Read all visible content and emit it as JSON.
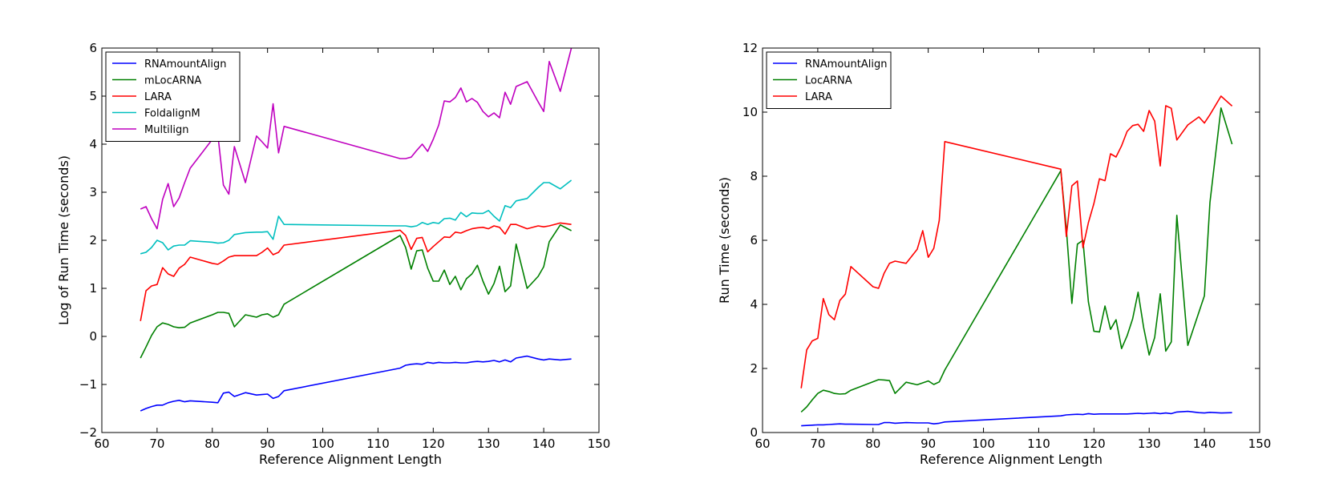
{
  "chart_data": [
    {
      "type": "line",
      "xlabel": "Reference Alignment Length",
      "ylabel": "Log of Run Time (seconds)",
      "xlim": [
        60,
        150
      ],
      "ylim": [
        -2,
        6
      ],
      "xticks": [
        "60",
        "70",
        "80",
        "90",
        "100",
        "110",
        "120",
        "130",
        "140",
        "150"
      ],
      "yticks": [
        "−2",
        "−1",
        "0",
        "1",
        "2",
        "3",
        "4",
        "5",
        "6"
      ],
      "legend_position": "top-left",
      "grid": false,
      "series": [
        {
          "name": "RNAmountAlign",
          "color": "#0000ff",
          "x": [
            67,
            68,
            69,
            70,
            71,
            72,
            73,
            74,
            75,
            76,
            80,
            81,
            82,
            83,
            84,
            86,
            88,
            89,
            90,
            91,
            92,
            93,
            114,
            115,
            116,
            117,
            118,
            119,
            120,
            121,
            122,
            123,
            124,
            125,
            126,
            127,
            128,
            129,
            130,
            131,
            132,
            133,
            134,
            135,
            137,
            139,
            140,
            141,
            143,
            145
          ],
          "y": [
            -1.55,
            -1.5,
            -1.46,
            -1.43,
            -1.43,
            -1.38,
            -1.35,
            -1.33,
            -1.36,
            -1.34,
            -1.37,
            -1.38,
            -1.18,
            -1.16,
            -1.25,
            -1.17,
            -1.22,
            -1.21,
            -1.2,
            -1.29,
            -1.25,
            -1.13,
            -0.66,
            -0.6,
            -0.58,
            -0.57,
            -0.58,
            -0.54,
            -0.56,
            -0.54,
            -0.55,
            -0.55,
            -0.54,
            -0.55,
            -0.55,
            -0.53,
            -0.52,
            -0.53,
            -0.52,
            -0.5,
            -0.53,
            -0.49,
            -0.53,
            -0.45,
            -0.41,
            -0.47,
            -0.49,
            -0.47,
            -0.49,
            -0.47
          ]
        },
        {
          "name": "mLocARNA",
          "color": "#008000",
          "x": [
            67,
            68,
            69,
            70,
            71,
            72,
            73,
            74,
            75,
            76,
            80,
            81,
            82,
            83,
            84,
            86,
            88,
            89,
            90,
            91,
            92,
            93,
            114,
            115,
            116,
            117,
            118,
            119,
            120,
            121,
            122,
            123,
            124,
            125,
            126,
            127,
            128,
            129,
            130,
            131,
            132,
            133,
            134,
            135,
            137,
            139,
            140,
            141,
            143,
            145
          ],
          "y": [
            -0.45,
            -0.22,
            0.02,
            0.2,
            0.28,
            0.25,
            0.2,
            0.18,
            0.19,
            0.28,
            0.45,
            0.5,
            0.5,
            0.48,
            0.2,
            0.45,
            0.4,
            0.45,
            0.47,
            0.4,
            0.45,
            0.67,
            2.1,
            1.85,
            1.4,
            1.78,
            1.8,
            1.42,
            1.15,
            1.15,
            1.38,
            1.08,
            1.25,
            0.97,
            1.2,
            1.3,
            1.48,
            1.15,
            0.88,
            1.1,
            1.46,
            0.93,
            1.05,
            1.92,
            1.0,
            1.25,
            1.45,
            1.97,
            2.32,
            2.2
          ]
        },
        {
          "name": "LARA",
          "color": "#ff0000",
          "x": [
            67,
            68,
            69,
            70,
            71,
            72,
            73,
            74,
            75,
            76,
            80,
            81,
            82,
            83,
            84,
            86,
            88,
            89,
            90,
            91,
            92,
            93,
            114,
            115,
            116,
            117,
            118,
            119,
            120,
            121,
            122,
            123,
            124,
            125,
            126,
            127,
            128,
            129,
            130,
            131,
            132,
            133,
            134,
            135,
            137,
            139,
            140,
            141,
            143,
            145
          ],
          "y": [
            0.32,
            0.95,
            1.05,
            1.08,
            1.43,
            1.3,
            1.25,
            1.42,
            1.5,
            1.65,
            1.52,
            1.5,
            1.57,
            1.65,
            1.68,
            1.68,
            1.68,
            1.75,
            1.84,
            1.7,
            1.75,
            1.9,
            2.21,
            2.1,
            1.81,
            2.04,
            2.06,
            1.76,
            1.87,
            1.97,
            2.07,
            2.06,
            2.17,
            2.15,
            2.2,
            2.24,
            2.26,
            2.27,
            2.24,
            2.3,
            2.27,
            2.13,
            2.33,
            2.33,
            2.24,
            2.3,
            2.28,
            2.3,
            2.36,
            2.33
          ]
        },
        {
          "name": "FoldalignM",
          "color": "#00bfbf",
          "x": [
            67,
            68,
            69,
            70,
            71,
            72,
            73,
            74,
            75,
            76,
            80,
            81,
            82,
            83,
            84,
            86,
            88,
            89,
            90,
            91,
            92,
            93,
            114,
            115,
            116,
            117,
            118,
            119,
            120,
            121,
            122,
            123,
            124,
            125,
            126,
            127,
            128,
            129,
            130,
            131,
            132,
            133,
            134,
            135,
            137,
            139,
            140,
            141,
            143,
            145
          ],
          "y": [
            1.72,
            1.75,
            1.85,
            2.0,
            1.95,
            1.8,
            1.88,
            1.9,
            1.9,
            1.99,
            1.96,
            1.94,
            1.95,
            2.0,
            2.12,
            2.16,
            2.17,
            2.17,
            2.18,
            2.02,
            2.5,
            2.33,
            2.3,
            2.3,
            2.28,
            2.3,
            2.37,
            2.33,
            2.37,
            2.35,
            2.45,
            2.46,
            2.42,
            2.58,
            2.49,
            2.57,
            2.56,
            2.56,
            2.62,
            2.5,
            2.4,
            2.72,
            2.68,
            2.82,
            2.87,
            3.1,
            3.2,
            3.2,
            3.07,
            3.25
          ]
        },
        {
          "name": "Multilign",
          "color": "#bf00bf",
          "x": [
            67,
            68,
            69,
            70,
            71,
            72,
            73,
            74,
            75,
            76,
            80,
            81,
            82,
            83,
            84,
            86,
            88,
            89,
            90,
            91,
            92,
            93,
            114,
            115,
            116,
            117,
            118,
            119,
            120,
            121,
            122,
            123,
            124,
            125,
            126,
            127,
            128,
            129,
            130,
            131,
            132,
            133,
            134,
            135,
            137,
            139,
            140,
            141,
            143,
            145
          ],
          "y": [
            2.65,
            2.7,
            2.45,
            2.24,
            2.85,
            3.18,
            2.7,
            2.88,
            3.2,
            3.5,
            4.1,
            4.2,
            3.15,
            2.96,
            3.95,
            3.2,
            4.17,
            4.05,
            3.92,
            4.84,
            3.82,
            4.37,
            3.7,
            3.7,
            3.73,
            3.87,
            4.0,
            3.85,
            4.1,
            4.4,
            4.9,
            4.88,
            4.97,
            5.17,
            4.88,
            4.95,
            4.87,
            4.68,
            4.57,
            4.65,
            4.55,
            5.08,
            4.83,
            5.2,
            5.3,
            4.88,
            4.68,
            5.72,
            5.1,
            6.0
          ]
        }
      ]
    },
    {
      "type": "line",
      "xlabel": "Reference Alignment Length",
      "ylabel": "Run Time (seconds)",
      "xlim": [
        60,
        150
      ],
      "ylim": [
        0,
        12
      ],
      "xticks": [
        "60",
        "70",
        "80",
        "90",
        "100",
        "110",
        "120",
        "130",
        "140",
        "150"
      ],
      "yticks": [
        "0",
        "2",
        "4",
        "6",
        "8",
        "10",
        "12"
      ],
      "legend_position": "top-left",
      "grid": false,
      "series": [
        {
          "name": "RNAmountAlign",
          "color": "#0000ff",
          "x": [
            67,
            68,
            69,
            70,
            71,
            72,
            73,
            74,
            75,
            76,
            80,
            81,
            82,
            83,
            84,
            86,
            88,
            89,
            90,
            91,
            92,
            93,
            114,
            115,
            116,
            117,
            118,
            119,
            120,
            121,
            122,
            123,
            124,
            125,
            126,
            127,
            128,
            129,
            130,
            131,
            132,
            133,
            134,
            135,
            137,
            139,
            140,
            141,
            143,
            145
          ],
          "y": [
            0.21,
            0.22,
            0.23,
            0.24,
            0.24,
            0.25,
            0.26,
            0.27,
            0.26,
            0.26,
            0.25,
            0.25,
            0.31,
            0.31,
            0.29,
            0.31,
            0.3,
            0.3,
            0.3,
            0.27,
            0.29,
            0.33,
            0.52,
            0.55,
            0.56,
            0.57,
            0.56,
            0.59,
            0.57,
            0.58,
            0.58,
            0.58,
            0.58,
            0.58,
            0.58,
            0.59,
            0.6,
            0.59,
            0.6,
            0.61,
            0.59,
            0.61,
            0.59,
            0.64,
            0.66,
            0.62,
            0.61,
            0.63,
            0.61,
            0.62
          ]
        },
        {
          "name": "LocARNA",
          "color": "#008000",
          "x": [
            67,
            68,
            69,
            70,
            71,
            72,
            73,
            74,
            75,
            76,
            81,
            82,
            83,
            84,
            86,
            88,
            89,
            90,
            91,
            92,
            93,
            114,
            115,
            116,
            117,
            118,
            119,
            120,
            121,
            122,
            123,
            124,
            125,
            126,
            127,
            128,
            129,
            130,
            131,
            132,
            133,
            134,
            135,
            137,
            140,
            141,
            143,
            145
          ],
          "y": [
            0.64,
            0.8,
            1.02,
            1.22,
            1.32,
            1.28,
            1.22,
            1.2,
            1.21,
            1.32,
            1.65,
            1.64,
            1.62,
            1.22,
            1.57,
            1.49,
            1.55,
            1.61,
            1.5,
            1.58,
            1.95,
            8.17,
            6.36,
            4.03,
            5.88,
            6.0,
            4.08,
            3.16,
            3.14,
            3.95,
            3.22,
            3.52,
            2.62,
            3.02,
            3.55,
            4.38,
            3.28,
            2.42,
            2.97,
            4.33,
            2.54,
            2.83,
            6.78,
            2.72,
            4.27,
            7.18,
            10.13,
            9.0
          ]
        },
        {
          "name": "LARA",
          "color": "#ff0000",
          "x": [
            67,
            68,
            69,
            70,
            71,
            72,
            73,
            74,
            75,
            76,
            80,
            81,
            82,
            83,
            84,
            86,
            88,
            89,
            90,
            91,
            92,
            93,
            114,
            115,
            116,
            117,
            118,
            119,
            120,
            121,
            122,
            123,
            124,
            125,
            126,
            127,
            128,
            129,
            130,
            131,
            132,
            133,
            134,
            135,
            137,
            139,
            140,
            141,
            143,
            145
          ],
          "y": [
            1.38,
            2.58,
            2.86,
            2.94,
            4.18,
            3.68,
            3.52,
            4.12,
            4.32,
            5.18,
            4.55,
            4.5,
            4.97,
            5.28,
            5.35,
            5.28,
            5.72,
            6.3,
            5.47,
            5.75,
            6.62,
            9.08,
            8.22,
            6.12,
            7.7,
            7.85,
            5.77,
            6.55,
            7.15,
            7.92,
            7.86,
            8.7,
            8.6,
            8.95,
            9.4,
            9.58,
            9.62,
            9.4,
            10.05,
            9.72,
            8.32,
            10.2,
            10.12,
            9.13,
            9.6,
            9.85,
            9.66,
            9.92,
            10.5,
            10.19
          ]
        }
      ]
    }
  ]
}
